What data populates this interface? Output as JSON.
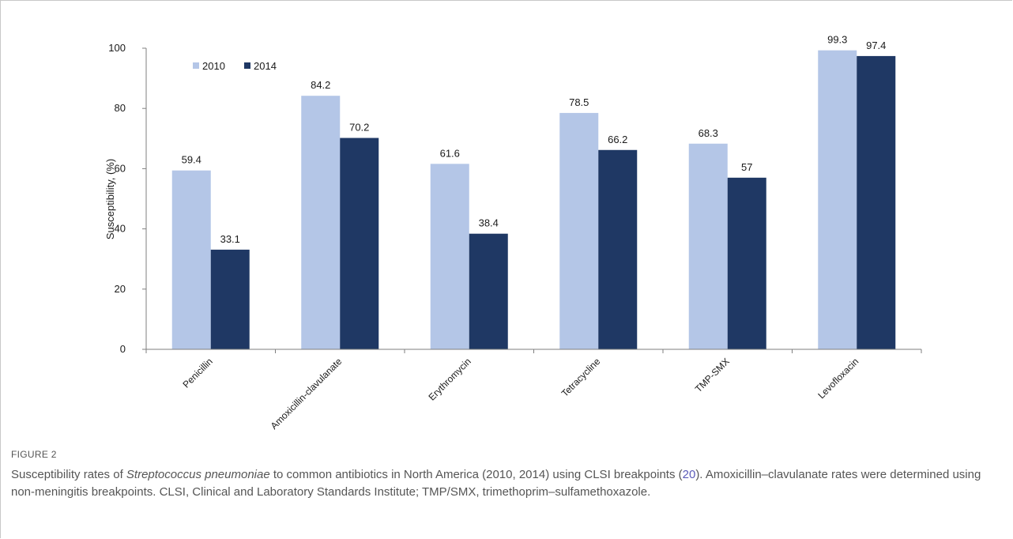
{
  "figure": {
    "label": "FIGURE 2",
    "caption_pre": "Susceptibility rates of ",
    "caption_species": "Streptococcus pneumoniae",
    "caption_mid": " to common antibiotics in North America (2010, 2014) using CLSI breakpoints (",
    "caption_ref": "20",
    "caption_post": "). Amoxicillin–clavulanate rates were determined using non-meningitis breakpoints. CLSI, Clinical and Laboratory Standards Institute; TMP/SMX, trimethoprim–sulfamethoxazole."
  },
  "colors": {
    "series_2010": "#b4c6e7",
    "series_2014": "#1f3864"
  },
  "chart_data": {
    "type": "bar",
    "categories": [
      "Penicillin",
      "Amoxicillin-clavulanate",
      "Erythromycin",
      "Tetracycline",
      "TMP-SMX",
      "Levofloxacin"
    ],
    "series": [
      {
        "name": "2010",
        "values": [
          59.4,
          84.2,
          61.6,
          78.5,
          68.3,
          99.3
        ],
        "labels": [
          "59.4",
          "84.2",
          "61.6",
          "78.5",
          "68.3",
          "99.3"
        ]
      },
      {
        "name": "2014",
        "values": [
          33.1,
          70.2,
          38.4,
          66.2,
          57,
          97.4
        ],
        "labels": [
          "33.1",
          "70.2",
          "38.4",
          "66.2",
          "57",
          "97.4"
        ]
      }
    ],
    "ylabel": "Susceptibility, (%)",
    "xlabel": "",
    "ylim": [
      0,
      100
    ],
    "yticks": [
      "0",
      "20",
      "40",
      "60",
      "80",
      "100"
    ],
    "legend_position": "top-left",
    "grid": false
  }
}
